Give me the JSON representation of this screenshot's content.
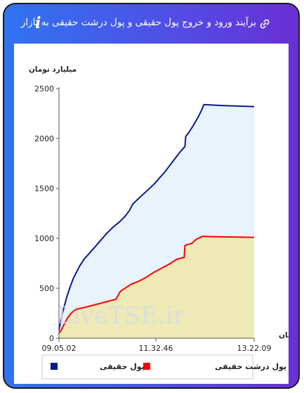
{
  "header": {
    "title": "برآیند ورود و خروج پول حقیقی و پول درشت حقیقی به بازار",
    "info_glyph": "i",
    "link_icon": "link-icon",
    "info_icon": "info-icon"
  },
  "colors": {
    "gradient_start": "#2f74f0",
    "gradient_end": "#6a2fd6",
    "series_real_money": "#0a1a8c",
    "series_big_money": "#ff0000",
    "area_real_money": "#e8f3fb",
    "area_big_money": "#efe9b5"
  },
  "chart_data": {
    "type": "area",
    "title": "",
    "ylabel": "میلیارد تومان",
    "xlabel": "زمان",
    "ylim": [
      0,
      2500
    ],
    "yticks": [
      0,
      500,
      1000,
      1500,
      2000,
      2500
    ],
    "xticks": [
      "09.05.02",
      "11.32.46",
      "13.22.09"
    ],
    "x_range": [
      "09:05:02",
      "13:22:09"
    ],
    "grid": false,
    "legend": "bottom",
    "watermark": "LiveTSE.ir",
    "series": [
      {
        "name": "پول حقیقی",
        "color": "#0a1a8c",
        "points": [
          [
            "09:05:02",
            80
          ],
          [
            "09:08:00",
            200
          ],
          [
            "09:12:00",
            320
          ],
          [
            "09:16:00",
            430
          ],
          [
            "09:20:00",
            520
          ],
          [
            "09:24:00",
            600
          ],
          [
            "09:28:00",
            660
          ],
          [
            "09:32:00",
            720
          ],
          [
            "09:38:00",
            790
          ],
          [
            "09:45:00",
            850
          ],
          [
            "09:52:00",
            910
          ],
          [
            "10:00:00",
            980
          ],
          [
            "10:08:00",
            1050
          ],
          [
            "10:16:00",
            1110
          ],
          [
            "10:24:00",
            1160
          ],
          [
            "10:32:00",
            1220
          ],
          [
            "10:38:00",
            1280
          ],
          [
            "10:42:00",
            1340
          ],
          [
            "10:50:00",
            1400
          ],
          [
            "11:00:00",
            1470
          ],
          [
            "11:10:00",
            1540
          ],
          [
            "11:18:00",
            1610
          ],
          [
            "11:24:00",
            1660
          ],
          [
            "11:30:00",
            1720
          ],
          [
            "11:38:00",
            1800
          ],
          [
            "11:45:00",
            1870
          ],
          [
            "11:51:00",
            1920
          ],
          [
            "11:52:00",
            2020
          ],
          [
            "11:56:00",
            2060
          ],
          [
            "12:02:00",
            2130
          ],
          [
            "12:08:00",
            2210
          ],
          [
            "12:12:00",
            2270
          ],
          [
            "12:16:00",
            2340
          ],
          [
            "12:40:00",
            2330
          ],
          [
            "13:22:09",
            2320
          ]
        ]
      },
      {
        "name": "پول درشت حقیقی",
        "color": "#ff0000",
        "points": [
          [
            "09:05:02",
            50
          ],
          [
            "09:08:00",
            80
          ],
          [
            "09:12:00",
            140
          ],
          [
            "09:16:00",
            200
          ],
          [
            "09:20:00",
            240
          ],
          [
            "09:24:00",
            270
          ],
          [
            "09:28:00",
            290
          ],
          [
            "09:40:00",
            310
          ],
          [
            "09:50:00",
            330
          ],
          [
            "10:00:00",
            350
          ],
          [
            "10:10:00",
            370
          ],
          [
            "10:20:00",
            390
          ],
          [
            "10:26:00",
            470
          ],
          [
            "10:34:00",
            510
          ],
          [
            "10:40:00",
            540
          ],
          [
            "10:50:00",
            570
          ],
          [
            "11:00:00",
            610
          ],
          [
            "11:10:00",
            660
          ],
          [
            "11:20:00",
            700
          ],
          [
            "11:30:00",
            740
          ],
          [
            "11:40:00",
            790
          ],
          [
            "11:50:00",
            810
          ],
          [
            "11:51:00",
            930
          ],
          [
            "12:00:00",
            950
          ],
          [
            "12:06:00",
            990
          ],
          [
            "12:14:00",
            1020
          ],
          [
            "12:40:00",
            1015
          ],
          [
            "13:22:09",
            1010
          ]
        ]
      }
    ]
  }
}
